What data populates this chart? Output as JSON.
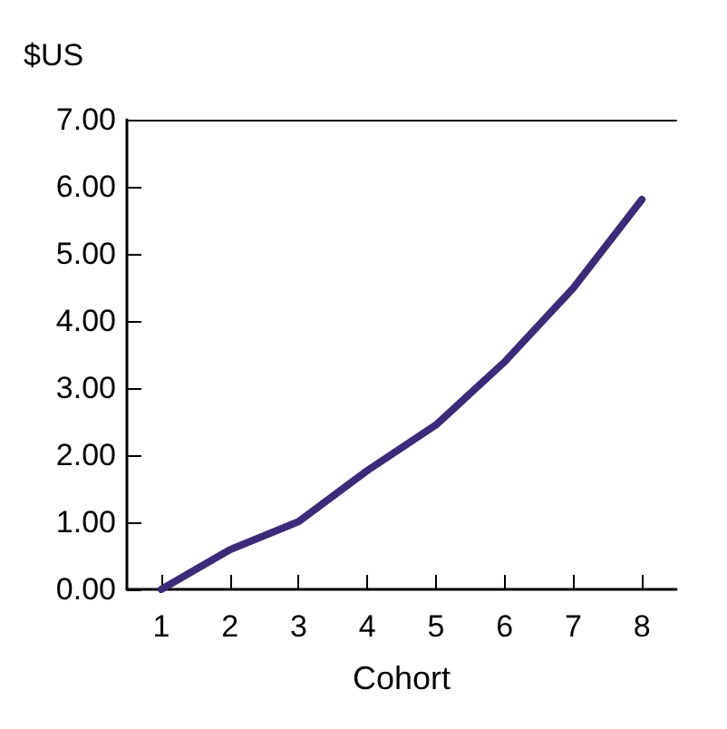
{
  "chart_data": {
    "type": "line",
    "ylabel": "$US",
    "xlabel": "Cohort",
    "categories": [
      "1",
      "2",
      "3",
      "4",
      "5",
      "6",
      "7",
      "8"
    ],
    "series": [
      {
        "color": "#3d2a78",
        "values": [
          0,
          0.59,
          1.01,
          1.77,
          2.45,
          3.39,
          4.49,
          5.81
        ]
      }
    ],
    "ylim": [
      0,
      7
    ],
    "yticks": [
      {
        "value": 0,
        "label": "0.00"
      },
      {
        "value": 1,
        "label": "1.00"
      },
      {
        "value": 2,
        "label": "2.00"
      },
      {
        "value": 3,
        "label": "3.00"
      },
      {
        "value": 4,
        "label": "4.00"
      },
      {
        "value": 5,
        "label": "5.00"
      },
      {
        "value": 6,
        "label": "6.00"
      },
      {
        "value": 7,
        "label": "7.00"
      }
    ],
    "grid": false,
    "marker": "none",
    "line_style": "solid"
  }
}
